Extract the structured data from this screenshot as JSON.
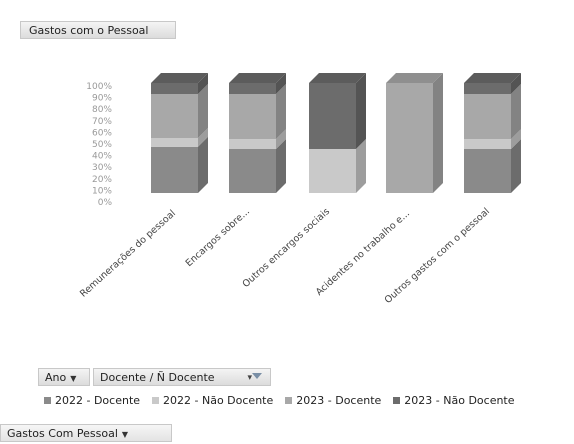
{
  "header": {
    "title_button": "Gastos com o Pessoal"
  },
  "filters": {
    "ano_label": "Ano",
    "docente_label": "Docente / Ñ Docente",
    "values_button": "Gastos Com Pessoal"
  },
  "colors": {
    "2022 - Docente": "#8a8a8a",
    "2022 - Não Docente": "#c9c9c9",
    "2023 - Docente": "#a8a8a8",
    "2023 - Não Docente": "#6c6c6c",
    "top": "#6a6a6a",
    "side": "#4e4e4e"
  },
  "chart_data": {
    "type": "bar",
    "stacked": "100%",
    "three_d": true,
    "categories": [
      "Remunerações do pessoal",
      "Encargos sobre...",
      "Outros encargos sociais",
      "Acidentes no trabalho e...",
      "Outros gastos com o pessoal"
    ],
    "series": [
      {
        "name": "2022 - Docente",
        "values": [
          42,
          40,
          0,
          0,
          40
        ]
      },
      {
        "name": "2022 - Não Docente",
        "values": [
          8,
          9,
          40,
          0,
          9
        ]
      },
      {
        "name": "2023 - Docente",
        "values": [
          40,
          41,
          0,
          100,
          41
        ]
      },
      {
        "name": "2023 - Não Docente",
        "values": [
          10,
          10,
          60,
          0,
          10
        ]
      }
    ],
    "yticks": [
      "0%",
      "10%",
      "20%",
      "30%",
      "40%",
      "50%",
      "60%",
      "70%",
      "80%",
      "90%",
      "100%"
    ],
    "ylim": [
      0,
      100
    ],
    "legend_position": "bottom"
  }
}
